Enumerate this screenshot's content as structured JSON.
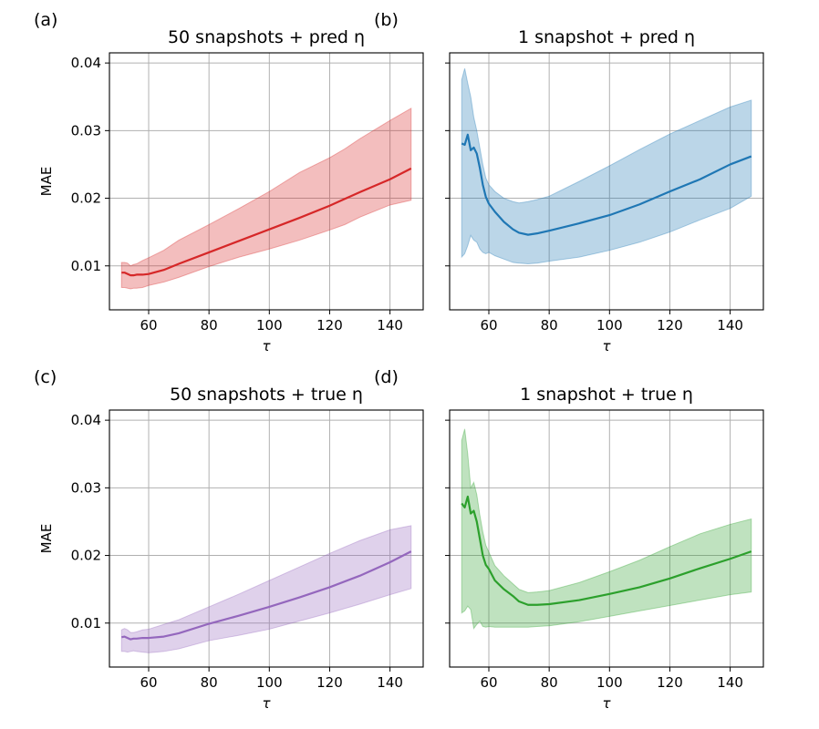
{
  "chart_data": [
    {
      "type": "line",
      "panel_label": "(a)",
      "title": "50 snapshots + pred η",
      "xlabel": "τ",
      "ylabel": "MAE",
      "xlim": [
        47,
        151
      ],
      "ylim": [
        0.0035,
        0.0415
      ],
      "xticks": [
        60,
        80,
        100,
        120,
        140
      ],
      "yticks": [
        0.01,
        0.02,
        0.03,
        0.04
      ],
      "ytick_labels_shown": true,
      "grid": true,
      "color": "#d62728",
      "series": [
        {
          "x": [
            51,
            52,
            53,
            54,
            55,
            56,
            58,
            60,
            65,
            70,
            80,
            90,
            100,
            110,
            120,
            125,
            130,
            140,
            147
          ],
          "mean": [
            0.009,
            0.009,
            0.0088,
            0.0086,
            0.0086,
            0.0087,
            0.0087,
            0.0088,
            0.0094,
            0.0103,
            0.012,
            0.0137,
            0.0154,
            0.0171,
            0.0189,
            0.0199,
            0.0209,
            0.0228,
            0.0244
          ],
          "upper": [
            0.0105,
            0.0105,
            0.0104,
            0.01,
            0.0102,
            0.0103,
            0.0108,
            0.0112,
            0.0123,
            0.0138,
            0.0161,
            0.0185,
            0.021,
            0.0238,
            0.026,
            0.0273,
            0.0288,
            0.0315,
            0.0333
          ],
          "lower": [
            0.0068,
            0.0068,
            0.0067,
            0.0066,
            0.0067,
            0.0067,
            0.0068,
            0.0071,
            0.0076,
            0.0083,
            0.0099,
            0.0113,
            0.0125,
            0.0138,
            0.0153,
            0.0161,
            0.0172,
            0.019,
            0.0197
          ]
        }
      ]
    },
    {
      "type": "line",
      "panel_label": "(b)",
      "title": "1 snapshot + pred η",
      "xlabel": "τ",
      "ylabel": "",
      "xlim": [
        47,
        151
      ],
      "ylim": [
        0.0035,
        0.0415
      ],
      "xticks": [
        60,
        80,
        100,
        120,
        140
      ],
      "yticks": [
        0.01,
        0.02,
        0.03,
        0.04
      ],
      "ytick_labels_shown": false,
      "grid": true,
      "color": "#1f77b4",
      "series": [
        {
          "x": [
            51,
            52,
            53,
            54,
            55,
            56,
            57,
            58,
            59,
            60,
            62,
            65,
            68,
            70,
            73,
            76,
            80,
            90,
            100,
            110,
            120,
            130,
            140,
            147
          ],
          "mean": [
            0.0281,
            0.0279,
            0.0294,
            0.0271,
            0.0275,
            0.0266,
            0.0245,
            0.022,
            0.0202,
            0.0192,
            0.018,
            0.0165,
            0.0154,
            0.0149,
            0.0146,
            0.0148,
            0.0152,
            0.0163,
            0.0175,
            0.0191,
            0.021,
            0.0228,
            0.025,
            0.0262
          ],
          "upper": [
            0.0375,
            0.0392,
            0.037,
            0.035,
            0.032,
            0.03,
            0.0275,
            0.025,
            0.023,
            0.022,
            0.021,
            0.02,
            0.0195,
            0.0193,
            0.0195,
            0.0198,
            0.0203,
            0.0225,
            0.0248,
            0.0272,
            0.0295,
            0.0315,
            0.0335,
            0.0345
          ],
          "lower": [
            0.0113,
            0.0118,
            0.013,
            0.0145,
            0.0138,
            0.0135,
            0.0125,
            0.012,
            0.0118,
            0.012,
            0.0115,
            0.011,
            0.0105,
            0.0104,
            0.0103,
            0.0104,
            0.0107,
            0.0113,
            0.0123,
            0.0135,
            0.015,
            0.0168,
            0.0185,
            0.0203
          ]
        }
      ]
    },
    {
      "type": "line",
      "panel_label": "(c)",
      "title": "50 snapshots + true η",
      "xlabel": "τ",
      "ylabel": "MAE",
      "xlim": [
        47,
        151
      ],
      "ylim": [
        0.0035,
        0.0415
      ],
      "xticks": [
        60,
        80,
        100,
        120,
        140
      ],
      "yticks": [
        0.01,
        0.02,
        0.03,
        0.04
      ],
      "ytick_labels_shown": true,
      "grid": true,
      "color": "#9467bd",
      "series": [
        {
          "x": [
            51,
            52,
            53,
            54,
            55,
            56,
            58,
            60,
            65,
            70,
            80,
            90,
            100,
            110,
            120,
            130,
            140,
            147
          ],
          "mean": [
            0.0079,
            0.008,
            0.0078,
            0.0076,
            0.0077,
            0.0077,
            0.0078,
            0.0078,
            0.008,
            0.0085,
            0.0099,
            0.0111,
            0.0124,
            0.0138,
            0.0153,
            0.017,
            0.019,
            0.0206
          ],
          "upper": [
            0.009,
            0.0092,
            0.009,
            0.0086,
            0.0086,
            0.0087,
            0.009,
            0.0091,
            0.0098,
            0.0105,
            0.0124,
            0.0143,
            0.0163,
            0.0183,
            0.0203,
            0.0222,
            0.0238,
            0.0244
          ],
          "lower": [
            0.0058,
            0.0058,
            0.0057,
            0.0058,
            0.0059,
            0.0058,
            0.0057,
            0.0056,
            0.0058,
            0.0062,
            0.0074,
            0.0082,
            0.0091,
            0.0103,
            0.0115,
            0.0128,
            0.0142,
            0.0151
          ]
        }
      ]
    },
    {
      "type": "line",
      "panel_label": "(d)",
      "title": "1 snapshot + true η",
      "xlabel": "τ",
      "ylabel": "",
      "xlim": [
        47,
        151
      ],
      "ylim": [
        0.0035,
        0.0415
      ],
      "xticks": [
        60,
        80,
        100,
        120,
        140
      ],
      "yticks": [
        0.01,
        0.02,
        0.03,
        0.04
      ],
      "ytick_labels_shown": false,
      "grid": true,
      "color": "#2ca02c",
      "series": [
        {
          "x": [
            51,
            52,
            53,
            54,
            55,
            56,
            57,
            58,
            59,
            60,
            62,
            65,
            68,
            70,
            73,
            76,
            80,
            90,
            100,
            110,
            120,
            130,
            140,
            147
          ],
          "mean": [
            0.0277,
            0.0271,
            0.0287,
            0.0262,
            0.0266,
            0.025,
            0.0225,
            0.02,
            0.0186,
            0.018,
            0.0163,
            0.015,
            0.014,
            0.0132,
            0.0127,
            0.0127,
            0.0128,
            0.0134,
            0.0143,
            0.0153,
            0.0166,
            0.0181,
            0.0195,
            0.0206
          ],
          "upper": [
            0.037,
            0.0387,
            0.035,
            0.03,
            0.0308,
            0.029,
            0.026,
            0.0235,
            0.0215,
            0.0205,
            0.0185,
            0.017,
            0.0158,
            0.015,
            0.0145,
            0.0146,
            0.0148,
            0.016,
            0.0176,
            0.0193,
            0.0213,
            0.0232,
            0.0246,
            0.0254
          ],
          "lower": [
            0.0115,
            0.0118,
            0.0125,
            0.012,
            0.0092,
            0.0098,
            0.0103,
            0.0095,
            0.0094,
            0.0095,
            0.0094,
            0.0094,
            0.0094,
            0.0094,
            0.0094,
            0.0095,
            0.0096,
            0.0102,
            0.011,
            0.0118,
            0.0126,
            0.0134,
            0.0142,
            0.0146
          ]
        }
      ]
    }
  ]
}
